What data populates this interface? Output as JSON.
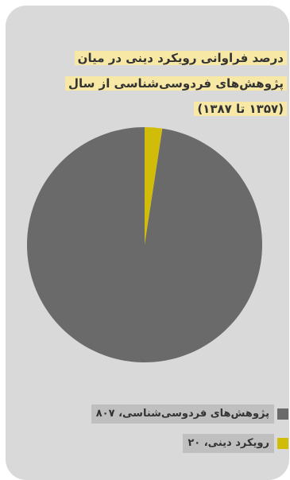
{
  "chart_data": {
    "type": "pie",
    "title": "درصد فراوانی رویکرد دینی در میان پژوهش‌های فردوسی‌شناسی از سال (۱۳۵۷ تا ۱۳۸۷)",
    "series": [
      {
        "name": "پژوهش‌های فردوسی‌شناسی، ۸۰۷",
        "value": 807,
        "color": "#6a6a6a"
      },
      {
        "name": "رویکرد دینی، ۲۰",
        "value": 20,
        "color": "#d1bc0a"
      }
    ],
    "legend_position": "bottom"
  },
  "colors": {
    "card_background": "#d9d9d9",
    "title_highlight": "#f7e9a5",
    "legend_label_background": "#bfbfbf"
  }
}
